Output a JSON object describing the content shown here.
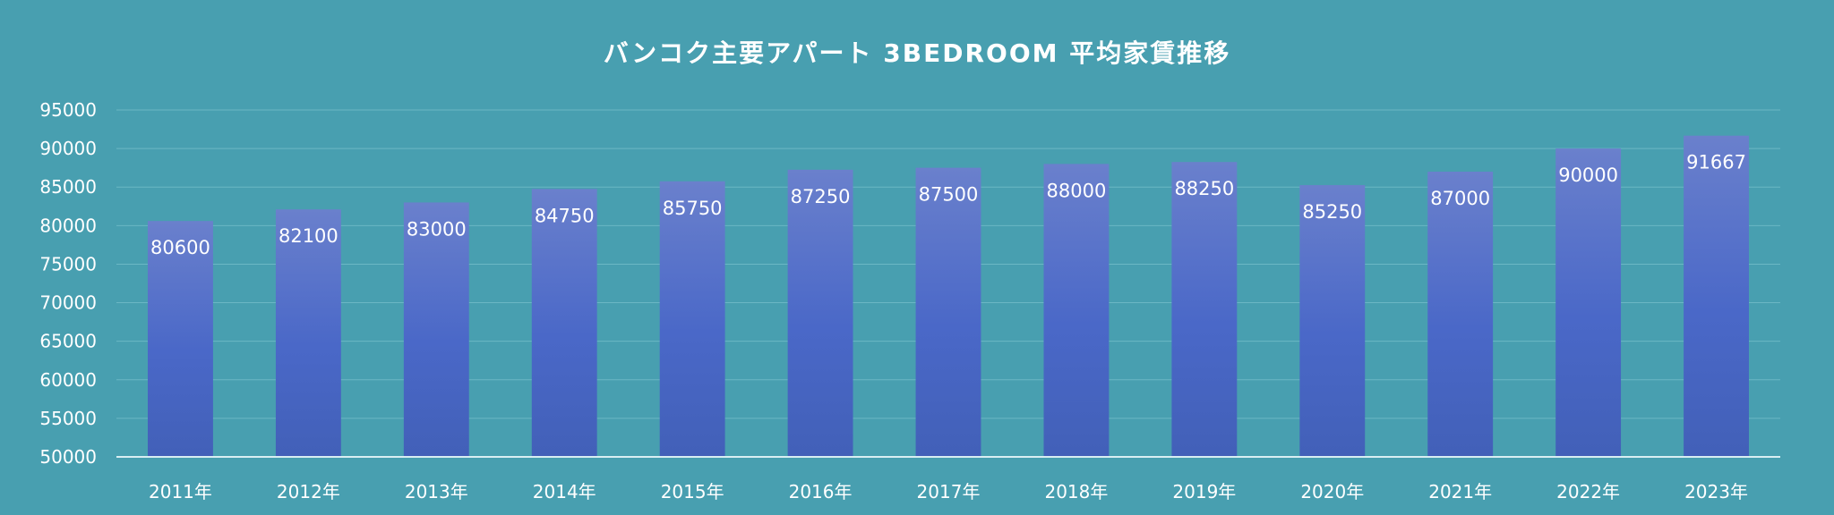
{
  "chart_data": {
    "type": "bar",
    "title": "バンコク主要アパート 3BEDROOM 平均家賃推移",
    "xlabel": "",
    "ylabel": "",
    "categories": [
      "2011年",
      "2012年",
      "2013年",
      "2014年",
      "2015年",
      "2016年",
      "2017年",
      "2018年",
      "2019年",
      "2020年",
      "2021年",
      "2022年",
      "2023年"
    ],
    "values": [
      80600,
      82100,
      83000,
      84750,
      85750,
      87250,
      87500,
      88000,
      88250,
      85250,
      87000,
      90000,
      91667
    ],
    "ylim": [
      50000,
      95000
    ],
    "yticks": [
      50000,
      55000,
      60000,
      65000,
      70000,
      75000,
      80000,
      85000,
      90000,
      95000
    ],
    "data_labels": true,
    "grid": true,
    "legend": "none",
    "colors": {
      "background": "#489fb0",
      "bar_top": "#6a80cc",
      "bar_mid": "#4a68c8",
      "bar_bottom": "#4260b8",
      "gridline": "#6bb7c4",
      "axis_line": "#d8eef2",
      "text": "#ffffff"
    }
  }
}
